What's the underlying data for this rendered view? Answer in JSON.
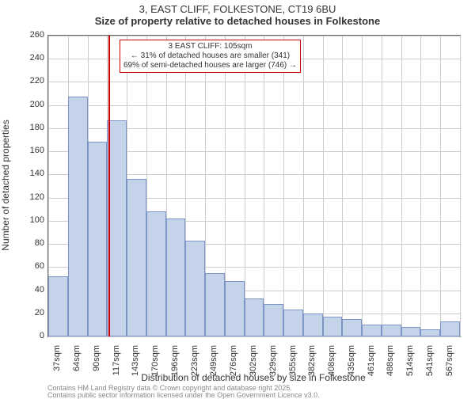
{
  "title_line1": "3, EAST CLIFF, FOLKESTONE, CT19 6BU",
  "title_line2": "Size of property relative to detached houses in Folkestone",
  "chart": {
    "type": "histogram",
    "xlabel": "Distribution of detached houses by size in Folkestone",
    "ylabel": "Number of detached properties",
    "ylim": [
      0,
      260
    ],
    "ytick_step": 20,
    "bar_fill": "#c4d2ea",
    "bar_border": "#7c95c6",
    "grid_color": "#cccccc",
    "axis_color": "#666666",
    "background_color": "#ffffff",
    "x_tick_labels": [
      "37sqm",
      "64sqm",
      "90sqm",
      "117sqm",
      "143sqm",
      "170sqm",
      "196sqm",
      "223sqm",
      "249sqm",
      "276sqm",
      "302sqm",
      "329sqm",
      "355sqm",
      "382sqm",
      "408sqm",
      "435sqm",
      "461sqm",
      "488sqm",
      "514sqm",
      "541sqm",
      "567sqm"
    ],
    "bar_values": [
      52,
      207,
      168,
      187,
      136,
      108,
      102,
      83,
      55,
      48,
      33,
      28,
      23,
      20,
      17,
      15,
      10,
      10,
      8,
      6,
      13
    ],
    "reference_line": {
      "value_sqm": 105,
      "color": "#cc0000",
      "width": 2
    },
    "annotation": {
      "lines": [
        "3 EAST CLIFF: 105sqm",
        "← 31% of detached houses are smaller (341)",
        "69% of semi-detached houses are larger (746) →"
      ],
      "border_color": "#cc0000",
      "fontsize": 10
    }
  },
  "attribution": [
    "Contains HM Land Registry data © Crown copyright and database right 2025.",
    "Contains public sector information licensed under the Open Government Licence v3.0."
  ]
}
